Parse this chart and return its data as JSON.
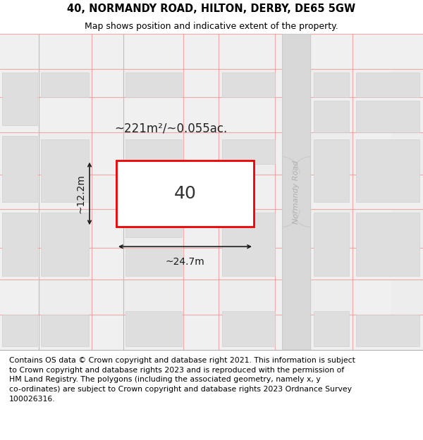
{
  "title": "40, NORMANDY ROAD, HILTON, DERBY, DE65 5GW",
  "subtitle": "Map shows position and indicative extent of the property.",
  "footer": "Contains OS data © Crown copyright and database right 2021. This information is subject\nto Crown copyright and database rights 2023 and is reproduced with the permission of\nHM Land Registry. The polygons (including the associated geometry, namely x, y\nco-ordinates) are subject to Crown copyright and database rights 2023 Ordnance Survey\n100026316.",
  "area_label": "~221m²/~0.055ac.",
  "width_label": "~24.7m",
  "height_label": "~12.2m",
  "plot_number": "40",
  "title_fontsize": 10.5,
  "subtitle_fontsize": 9,
  "footer_fontsize": 7.8,
  "map_bg": "#ececec",
  "road_fill": "#f7f7f7",
  "building_fill": "#dedede",
  "normandy_fill": "#d4d4d4",
  "plot_fill": "#ffffff",
  "plot_edge": "#ee0000",
  "dim_color": "#1a1a1a",
  "road_line": "#f0a0a0",
  "label_color": "#bbbbbb"
}
